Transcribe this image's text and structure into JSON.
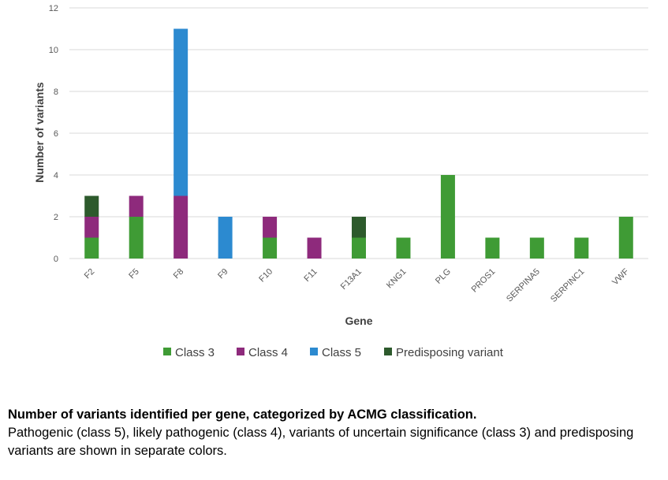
{
  "chart_data": {
    "type": "bar",
    "stacked": true,
    "title": "",
    "xlabel": "Gene",
    "ylabel": "Number of variants",
    "ylim": [
      0,
      12
    ],
    "yticks": [
      0,
      2,
      4,
      6,
      8,
      10,
      12
    ],
    "grid": true,
    "legend_position": "bottom",
    "categories": [
      "F2",
      "F5",
      "F8",
      "F9",
      "F10",
      "F11",
      "F13A1",
      "KNG1",
      "PLG",
      "PROS1",
      "SERPINA5",
      "SERPINC1",
      "VWF"
    ],
    "series": [
      {
        "name": "Class 3",
        "color": "#3f9b35",
        "values": [
          1,
          2,
          0,
          0,
          1,
          0,
          1,
          1,
          4,
          1,
          1,
          1,
          2
        ]
      },
      {
        "name": "Class 4",
        "color": "#8e2a7c",
        "values": [
          1,
          1,
          3,
          0,
          1,
          1,
          0,
          0,
          0,
          0,
          0,
          0,
          0
        ]
      },
      {
        "name": "Class 5",
        "color": "#2c8ad0",
        "values": [
          0,
          0,
          8,
          2,
          0,
          0,
          0,
          0,
          0,
          0,
          0,
          0,
          0
        ]
      },
      {
        "name": "Predisposing variant",
        "color": "#2d5a2c",
        "values": [
          1,
          0,
          0,
          0,
          0,
          0,
          1,
          0,
          0,
          0,
          0,
          0,
          0
        ]
      }
    ]
  },
  "caption": {
    "title": "Number of variants identified per gene, categorized by ACMG classification.",
    "text": "Pathogenic (class 5), likely pathogenic (class 4), variants of uncertain significance (class 3) and predisposing variants are shown in separate colors."
  }
}
